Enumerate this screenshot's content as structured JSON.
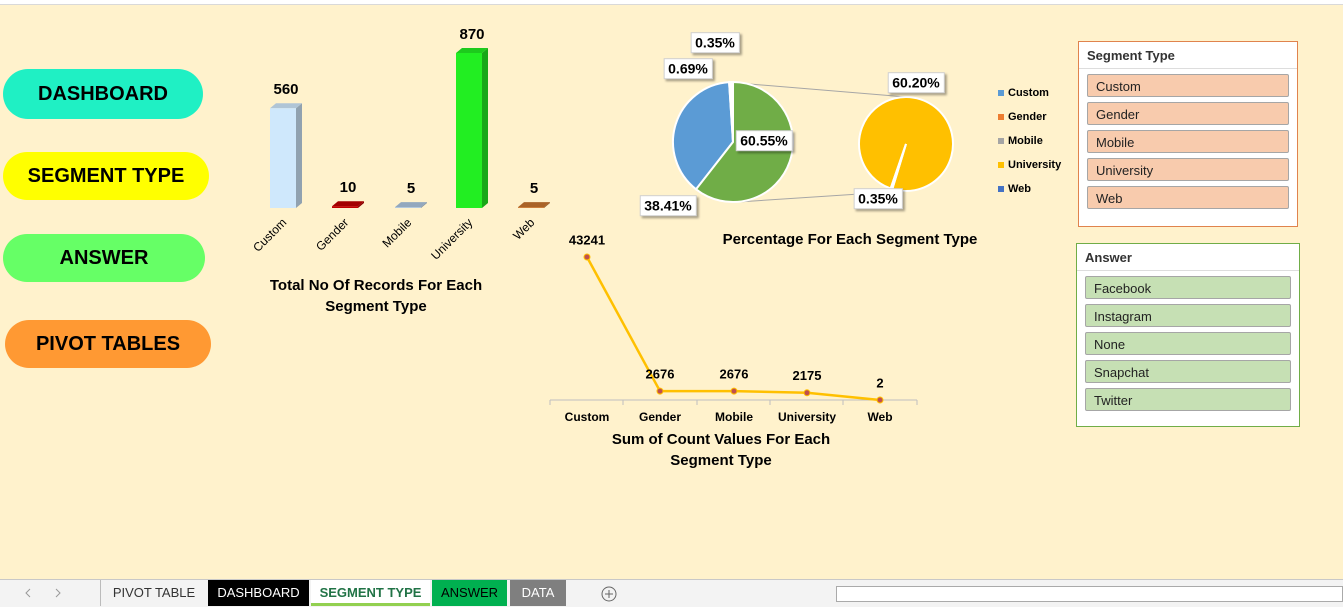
{
  "buttons": [
    "DASHBOARD",
    "SEGMENT TYPE",
    "ANSWER",
    "PIVOT TABLES"
  ],
  "chart_data": [
    {
      "type": "bar",
      "title": "Total No Of Records For Each Segment Type",
      "categories": [
        "Custom",
        "Gender",
        "Mobile",
        "University",
        "Web"
      ],
      "values": [
        560,
        10,
        5,
        870,
        5
      ],
      "colors": [
        "#cfe8fc",
        "#c00000",
        "#adc6e0",
        "#22ee22",
        "#c8752e"
      ]
    },
    {
      "type": "pie",
      "title": "Percentage For Each Segment Type",
      "values": [
        38.41,
        0.69,
        0.35,
        60.55
      ],
      "value_labels": [
        "38.41%",
        "0.69%",
        "0.35%",
        "60.55%"
      ],
      "colors": [
        "#5b9bd5",
        "#ffffff",
        "#a5a5a5",
        "#70ad47"
      ],
      "secondary": {
        "values": [
          60.2,
          0.35
        ],
        "value_labels": [
          "60.20%",
          "0.35%"
        ],
        "colors": [
          "#ffc000",
          "#ffffff"
        ]
      },
      "legend": [
        {
          "name": "Custom",
          "color": "#5b9bd5"
        },
        {
          "name": "Gender",
          "color": "#ed7d31"
        },
        {
          "name": "Mobile",
          "color": "#a5a5a5"
        },
        {
          "name": "University",
          "color": "#ffc000"
        },
        {
          "name": "Web",
          "color": "#4472c4"
        }
      ]
    },
    {
      "type": "line",
      "title": "Sum of Count Values For Each Segment Type",
      "categories": [
        "Custom",
        "Gender",
        "Mobile",
        "University",
        "Web"
      ],
      "values": [
        43241,
        2676,
        2676,
        2175,
        2
      ],
      "color": "#ffc000"
    }
  ],
  "slicers": [
    {
      "title": "Segment Type",
      "items": [
        "Custom",
        "Gender",
        "Mobile",
        "University",
        "Web"
      ]
    },
    {
      "title": "Answer",
      "items": [
        "Facebook",
        "Instagram",
        "None",
        "Snapchat",
        "Twitter"
      ]
    }
  ],
  "sheet_tabs": [
    "PIVOT TABLE",
    "DASHBOARD",
    "SEGMENT TYPE",
    "ANSWER",
    "DATA"
  ]
}
